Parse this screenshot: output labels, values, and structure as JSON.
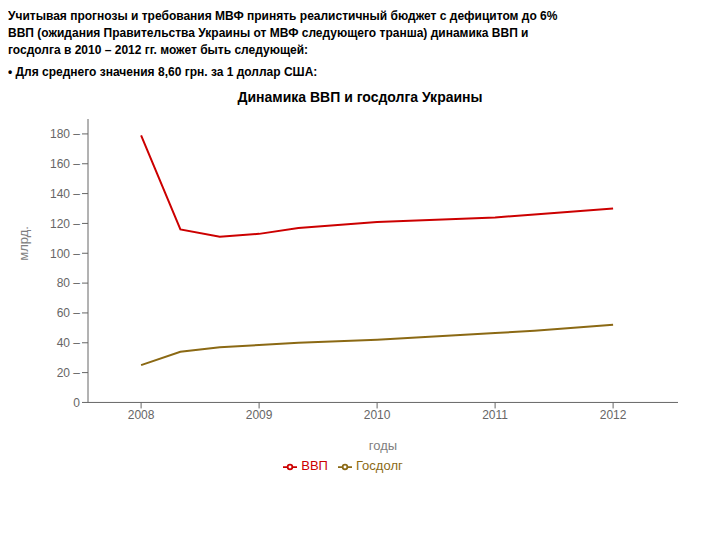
{
  "chart_data": {
    "type": "line",
    "title": "Динамика ВВП и госдолга Украины",
    "annotations": [
      "Учитывая прогнозы и требования МВФ принять реалистичный бюджет с дефицитом до 6%",
      "ВВП (ожидания Правительства Украины от МВФ следующего транша) динамика ВВП и",
      "госдолга в 2010 – 2012 гг. может быть следующей:",
      "• Для среднего значения 8,60 грн. за 1 доллар США:"
    ],
    "xlabel": "годы",
    "ylabel": "млрд.",
    "x": [
      2008.0,
      2008.333,
      2008.667,
      2009.0,
      2009.333,
      2009.667,
      2010.0,
      2010.333,
      2010.667,
      2011.0,
      2011.333,
      2011.667,
      2012.0
    ],
    "series": [
      {
        "name": "ВВП",
        "color": "#cc0000",
        "values": [
          179,
          116,
          111,
          113,
          117,
          119,
          121,
          122,
          123,
          124,
          126,
          128,
          130
        ]
      },
      {
        "name": "Госдолг",
        "color": "#8B6914",
        "values": [
          25,
          34,
          37,
          38.5,
          40,
          41,
          42,
          43.5,
          45,
          46.5,
          48,
          50,
          52
        ]
      }
    ],
    "xlim": [
      2007.55,
      2012.55
    ],
    "xticks": [
      2008,
      2009,
      2010,
      2011,
      2012
    ],
    "ylim": [
      0,
      190
    ],
    "yticks": [
      0,
      {
        "value": 20,
        "label": "20 –"
      },
      {
        "value": 40,
        "label": "40 –"
      },
      {
        "value": 60,
        "label": "60 –"
      },
      {
        "value": 80,
        "label": "80 –"
      },
      {
        "value": 100,
        "label": "100 –"
      },
      {
        "value": 120,
        "label": "120 –"
      },
      {
        "value": 140,
        "label": "140 –"
      },
      {
        "value": 160,
        "label": "160 –"
      },
      {
        "value": 180,
        "label": "180 –"
      }
    ],
    "legend": "bottom",
    "grid": false
  }
}
